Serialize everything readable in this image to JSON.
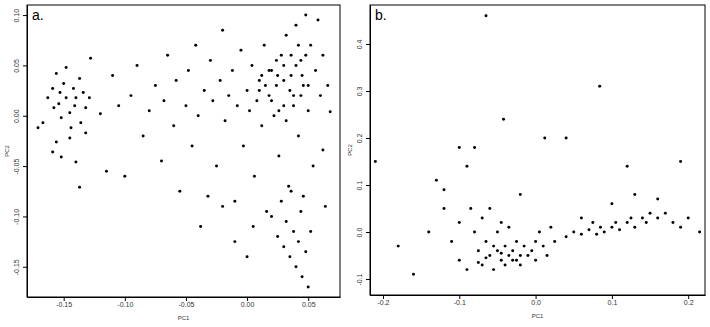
{
  "chart_data": [
    {
      "type": "scatter",
      "title": "a.",
      "x_label": "PC1",
      "y_label": "PC2",
      "color": "#000000",
      "marker": "circle",
      "xlim": [
        -0.18,
        0.076
      ],
      "ylim": [
        -0.18,
        0.11
      ],
      "xticks": [
        {
          "value": -0.15,
          "label": "-0.15"
        },
        {
          "value": -0.1,
          "label": "-0.10"
        },
        {
          "value": -0.05,
          "label": "-0.05"
        },
        {
          "value": 0,
          "label": "0.00"
        },
        {
          "value": 0.05,
          "label": "0.05"
        }
      ],
      "yticks": [
        {
          "value": -0.15,
          "label": "-0.15"
        },
        {
          "value": -0.1,
          "label": "-0.10"
        },
        {
          "value": -0.05,
          "label": "-0.05"
        },
        {
          "value": 0,
          "label": "0.00"
        },
        {
          "value": 0.05,
          "label": "0.05"
        },
        {
          "value": 0.1,
          "label": "0.10"
        }
      ],
      "x": [
        -0.171,
        -0.167,
        -0.163,
        -0.159,
        -0.156,
        -0.158,
        -0.153,
        -0.152,
        -0.15,
        -0.148,
        -0.145,
        -0.144,
        -0.142,
        -0.14,
        -0.137,
        -0.136,
        -0.134,
        -0.132,
        -0.129,
        -0.128,
        -0.152,
        -0.156,
        -0.14,
        -0.137,
        -0.159,
        -0.145,
        -0.132,
        -0.148,
        -0.141,
        -0.154,
        -0.12,
        -0.115,
        -0.11,
        -0.105,
        -0.1,
        -0.095,
        -0.09,
        -0.085,
        -0.08,
        -0.075,
        -0.07,
        -0.068,
        -0.065,
        -0.06,
        -0.058,
        -0.055,
        -0.05,
        -0.048,
        -0.045,
        -0.042,
        -0.04,
        -0.038,
        -0.035,
        -0.032,
        -0.03,
        -0.028,
        -0.025,
        -0.022,
        -0.02,
        -0.018,
        -0.015,
        -0.012,
        -0.01,
        -0.008,
        -0.005,
        -0.003,
        0.0,
        0.002,
        0.004,
        0.006,
        0.008,
        0.01,
        0.012,
        0.014,
        0.016,
        0.018,
        0.02,
        0.022,
        0.024,
        0.026,
        0.028,
        0.03,
        0.032,
        0.034,
        0.036,
        0.038,
        0.04,
        0.042,
        0.044,
        0.046,
        0.048,
        0.05,
        0.052,
        0.054,
        0.056,
        0.058,
        0.06,
        0.062,
        0.064,
        0.066,
        0.068,
        0.02,
        0.025,
        0.03,
        0.032,
        0.035,
        0.038,
        0.04,
        0.042,
        0.045,
        0.048,
        0.05,
        0.044,
        -0.01,
        0.0,
        0.005,
        0.028,
        0.036,
        0.046,
        0.052,
        -0.02,
        0.01,
        0.015,
        0.02,
        0.025,
        0.03,
        0.035,
        0.04,
        0.045,
        0.05,
        0.048,
        0.042,
        0.036,
        0.03,
        0.024,
        0.018,
        0.012,
        0.044,
        0.038,
        0.032,
        0.026,
        0.062
      ],
      "values": [
        -0.012,
        -0.007,
        0.018,
        0.027,
        0.042,
        0.008,
        0.023,
        -0.002,
        0.032,
        0.018,
        0.003,
        -0.012,
        0.027,
        0.018,
        0.037,
        -0.007,
        0.023,
        0.008,
        0.018,
        0.057,
        -0.041,
        -0.026,
        -0.046,
        -0.071,
        -0.036,
        -0.022,
        -0.017,
        0.048,
        0.01,
        0.012,
        0.002,
        -0.055,
        0.04,
        0.01,
        -0.06,
        0.02,
        0.05,
        -0.02,
        0.005,
        0.03,
        -0.045,
        0.015,
        0.06,
        -0.01,
        0.035,
        -0.075,
        0.01,
        0.045,
        -0.03,
        0.07,
        0.0,
        -0.11,
        0.025,
        -0.08,
        0.055,
        0.015,
        -0.05,
        0.035,
        0.085,
        -0.005,
        0.02,
        0.045,
        -0.085,
        0.01,
        0.065,
        -0.03,
        0.025,
        0.005,
        0.05,
        -0.06,
        0.015,
        0.035,
        -0.01,
        0.07,
        -0.095,
        0.02,
        0.045,
        0.0,
        0.03,
        -0.04,
        0.06,
        0.01,
        0.08,
        -0.07,
        0.04,
        0.02,
        0.09,
        -0.02,
        0.055,
        0.03,
        0.1,
        0.005,
        0.07,
        -0.05,
        0.045,
        0.095,
        0.02,
        0.06,
        -0.09,
        0.03,
        0.004,
        -0.1,
        -0.12,
        -0.13,
        -0.105,
        -0.14,
        -0.115,
        -0.15,
        -0.125,
        -0.16,
        -0.135,
        -0.17,
        -0.095,
        -0.125,
        -0.14,
        -0.11,
        -0.085,
        -0.075,
        -0.08,
        -0.115,
        -0.09,
        0.025,
        0.03,
        0.015,
        0.04,
        0.035,
        0.025,
        0.05,
        0.04,
        0.03,
        0.06,
        0.07,
        0.06,
        0.05,
        0.055,
        0.045,
        0.04,
        0.02,
        0.01,
        -0.005,
        0.005,
        -0.034
      ]
    },
    {
      "type": "scatter",
      "title": "b.",
      "x_label": "PC1",
      "y_label": "PC2",
      "color": "#000000",
      "marker": "circle",
      "xlim": [
        -0.217,
        0.222
      ],
      "ylim": [
        -0.134,
        0.483
      ],
      "xticks": [
        {
          "value": -0.2,
          "label": "-0.2"
        },
        {
          "value": -0.1,
          "label": "-0.1"
        },
        {
          "value": 0,
          "label": "0.0"
        },
        {
          "value": 0.1,
          "label": "0.1"
        },
        {
          "value": 0.2,
          "label": "0.2"
        }
      ],
      "yticks": [
        {
          "value": -0.1,
          "label": "-0.1"
        },
        {
          "value": 0,
          "label": "0.0"
        },
        {
          "value": 0.1,
          "label": "0.1"
        },
        {
          "value": 0.2,
          "label": "0.2"
        },
        {
          "value": 0.3,
          "label": "0.3"
        },
        {
          "value": 0.4,
          "label": "0.4"
        }
      ],
      "x": [
        -0.065,
        0.084,
        -0.042,
        0.012,
        0.04,
        -0.21,
        -0.1,
        -0.08,
        -0.09,
        0.19,
        0.12,
        -0.13,
        -0.12,
        0.13,
        -0.02,
        -0.18,
        -0.16,
        -0.14,
        -0.12,
        -0.11,
        -0.1,
        -0.1,
        -0.09,
        -0.085,
        -0.08,
        -0.075,
        -0.07,
        -0.07,
        -0.065,
        -0.06,
        -0.06,
        -0.055,
        -0.05,
        -0.05,
        -0.045,
        -0.045,
        -0.04,
        -0.04,
        -0.035,
        -0.035,
        -0.03,
        -0.03,
        -0.025,
        -0.02,
        -0.02,
        -0.015,
        -0.01,
        -0.005,
        0.0,
        0.0,
        0.005,
        0.01,
        0.015,
        0.02,
        0.025,
        -0.055,
        -0.065,
        -0.075,
        -0.025,
        -0.045,
        0.04,
        0.05,
        0.06,
        0.07,
        0.08,
        0.085,
        0.09,
        0.1,
        0.105,
        0.11,
        0.12,
        0.125,
        0.13,
        0.14,
        0.145,
        0.15,
        0.16,
        0.17,
        0.18,
        0.19,
        0.2,
        0.215,
        0.1,
        0.16,
        0.06,
        0.075
      ],
      "values": [
        0.46,
        0.31,
        0.24,
        0.2,
        0.2,
        0.15,
        0.18,
        0.18,
        0.14,
        0.15,
        0.14,
        0.11,
        0.09,
        0.08,
        0.08,
        -0.03,
        -0.09,
        0.0,
        0.05,
        -0.02,
        -0.06,
        0.02,
        -0.08,
        0.05,
        0.0,
        -0.04,
        0.03,
        -0.07,
        -0.02,
        0.05,
        -0.05,
        -0.08,
        0.0,
        -0.04,
        -0.06,
        0.02,
        -0.03,
        -0.07,
        -0.05,
        0.01,
        -0.04,
        -0.06,
        -0.02,
        -0.05,
        -0.07,
        -0.03,
        -0.05,
        -0.04,
        -0.02,
        -0.06,
        0.0,
        -0.03,
        -0.05,
        0.01,
        -0.02,
        -0.03,
        -0.055,
        -0.065,
        -0.06,
        -0.045,
        -0.01,
        0.0,
        -0.005,
        0.005,
        -0.005,
        0.01,
        0.0,
        0.01,
        0.02,
        0.005,
        0.02,
        0.03,
        0.01,
        0.03,
        0.02,
        0.04,
        0.03,
        0.04,
        0.02,
        0.01,
        0.03,
        0.0,
        0.06,
        0.07,
        0.03,
        0.02
      ]
    }
  ]
}
